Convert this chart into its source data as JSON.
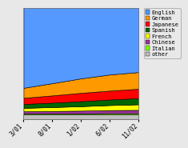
{
  "x_labels": [
    "3/01",
    "8/01",
    "1/02",
    "6/02",
    "11/02"
  ],
  "x_positions": [
    0,
    1,
    2,
    3,
    4
  ],
  "series_order": [
    "other",
    "Italian",
    "Chinese",
    "French",
    "Spanish",
    "Japanese",
    "German",
    "English"
  ],
  "series": {
    "other": [
      4.0,
      4.0,
      4.0,
      4.0,
      4.0
    ],
    "Italian": [
      1.0,
      1.0,
      1.0,
      1.2,
      1.2
    ],
    "Chinese": [
      2.0,
      2.2,
      2.5,
      2.8,
      3.0
    ],
    "French": [
      3.0,
      3.5,
      4.0,
      4.5,
      5.0
    ],
    "Spanish": [
      3.5,
      4.0,
      4.5,
      5.0,
      5.5
    ],
    "Japanese": [
      5.5,
      6.5,
      7.5,
      8.0,
      8.5
    ],
    "German": [
      9.0,
      11.0,
      13.0,
      14.5,
      15.0
    ],
    "English": [
      72.0,
      67.8,
      63.5,
      60.0,
      57.8
    ]
  },
  "colors": {
    "other": "#c0c0c0",
    "Italian": "#80ff00",
    "Chinese": "#993399",
    "French": "#ffff00",
    "Spanish": "#006600",
    "Japanese": "#ff0000",
    "German": "#ff9900",
    "English": "#5599ff"
  },
  "legend_order": [
    "English",
    "German",
    "Japanese",
    "Spanish",
    "French",
    "Chinese",
    "Italian",
    "other"
  ],
  "bg_color": "#e8e8e8",
  "plot_bg_color": "#ffffff"
}
